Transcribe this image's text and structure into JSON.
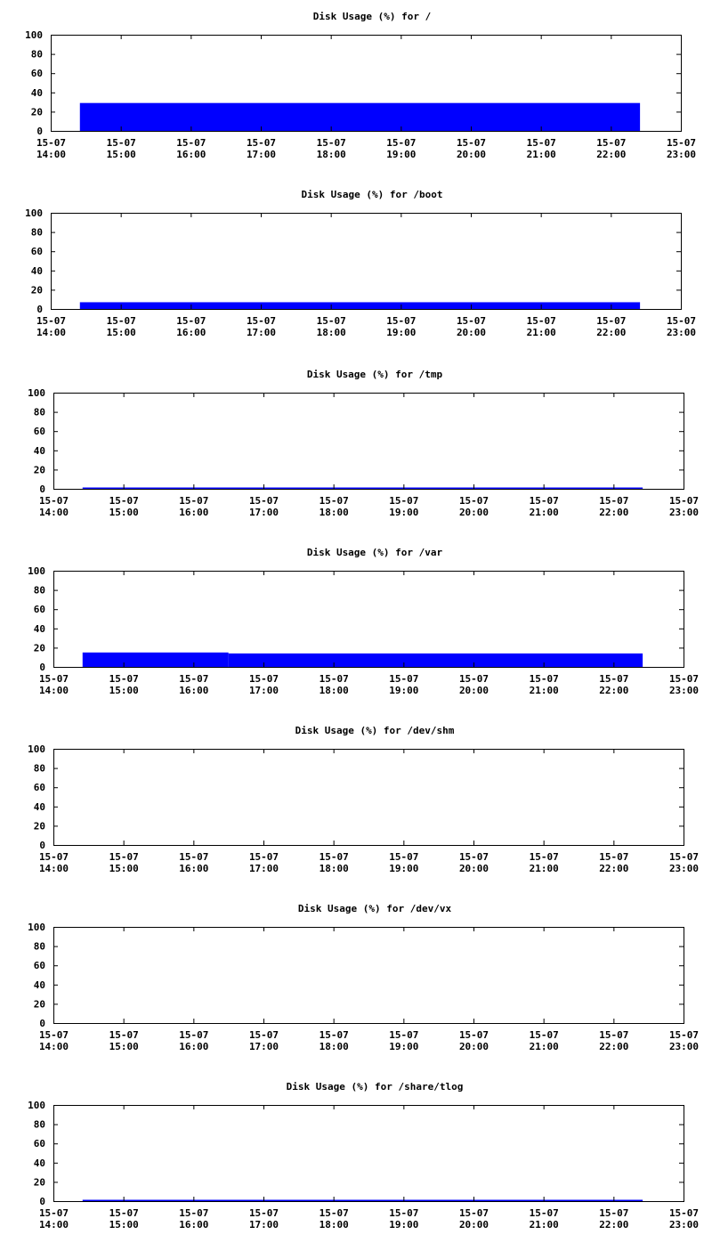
{
  "colors": {
    "bar": "#0000ff",
    "frame": "#000000",
    "background": "#ffffff"
  },
  "chart_data": [
    {
      "type": "bar",
      "title": "Disk Usage (%) for /",
      "ylim": [
        0,
        100
      ],
      "yticks": [
        "0",
        "20",
        "40",
        "60",
        "80",
        "100"
      ],
      "xticks": [
        {
          "date": "15-07",
          "time": "14:00"
        },
        {
          "date": "15-07",
          "time": "15:00"
        },
        {
          "date": "15-07",
          "time": "16:00"
        },
        {
          "date": "15-07",
          "time": "17:00"
        },
        {
          "date": "15-07",
          "time": "18:00"
        },
        {
          "date": "15-07",
          "time": "19:00"
        },
        {
          "date": "15-07",
          "time": "20:00"
        },
        {
          "date": "15-07",
          "time": "21:00"
        },
        {
          "date": "15-07",
          "time": "22:00"
        },
        {
          "date": "15-07",
          "time": "23:00"
        }
      ],
      "xlim": [
        "15-07 14:00",
        "15-07 23:00"
      ],
      "series": [
        {
          "segments": [
            {
              "start": "15-07 14:25",
              "end": "15-07 22:25",
              "value": 29
            }
          ]
        }
      ],
      "grid": false
    },
    {
      "type": "bar",
      "title": "Disk Usage (%) for /boot",
      "ylim": [
        0,
        100
      ],
      "yticks": [
        "0",
        "20",
        "40",
        "60",
        "80",
        "100"
      ],
      "xticks": [
        {
          "date": "15-07",
          "time": "14:00"
        },
        {
          "date": "15-07",
          "time": "15:00"
        },
        {
          "date": "15-07",
          "time": "16:00"
        },
        {
          "date": "15-07",
          "time": "17:00"
        },
        {
          "date": "15-07",
          "time": "18:00"
        },
        {
          "date": "15-07",
          "time": "19:00"
        },
        {
          "date": "15-07",
          "time": "20:00"
        },
        {
          "date": "15-07",
          "time": "21:00"
        },
        {
          "date": "15-07",
          "time": "22:00"
        },
        {
          "date": "15-07",
          "time": "23:00"
        }
      ],
      "xlim": [
        "15-07 14:00",
        "15-07 23:00"
      ],
      "series": [
        {
          "segments": [
            {
              "start": "15-07 14:25",
              "end": "15-07 22:25",
              "value": 7
            }
          ]
        }
      ],
      "grid": false
    },
    {
      "type": "bar",
      "title": "Disk Usage (%) for /tmp",
      "ylim": [
        0,
        100
      ],
      "yticks": [
        "0",
        "20",
        "40",
        "60",
        "80",
        "100"
      ],
      "xticks": [
        {
          "date": "15-07",
          "time": "14:00"
        },
        {
          "date": "15-07",
          "time": "15:00"
        },
        {
          "date": "15-07",
          "time": "16:00"
        },
        {
          "date": "15-07",
          "time": "17:00"
        },
        {
          "date": "15-07",
          "time": "18:00"
        },
        {
          "date": "15-07",
          "time": "19:00"
        },
        {
          "date": "15-07",
          "time": "20:00"
        },
        {
          "date": "15-07",
          "time": "21:00"
        },
        {
          "date": "15-07",
          "time": "22:00"
        },
        {
          "date": "15-07",
          "time": "23:00"
        }
      ],
      "xlim": [
        "15-07 14:00",
        "15-07 23:00"
      ],
      "series": [
        {
          "segments": [
            {
              "start": "15-07 14:25",
              "end": "15-07 22:25",
              "value": 1
            }
          ]
        }
      ],
      "grid": false
    },
    {
      "type": "bar",
      "title": "Disk Usage (%) for /var",
      "ylim": [
        0,
        100
      ],
      "yticks": [
        "0",
        "20",
        "40",
        "60",
        "80",
        "100"
      ],
      "xticks": [
        {
          "date": "15-07",
          "time": "14:00"
        },
        {
          "date": "15-07",
          "time": "15:00"
        },
        {
          "date": "15-07",
          "time": "16:00"
        },
        {
          "date": "15-07",
          "time": "17:00"
        },
        {
          "date": "15-07",
          "time": "18:00"
        },
        {
          "date": "15-07",
          "time": "19:00"
        },
        {
          "date": "15-07",
          "time": "20:00"
        },
        {
          "date": "15-07",
          "time": "21:00"
        },
        {
          "date": "15-07",
          "time": "22:00"
        },
        {
          "date": "15-07",
          "time": "23:00"
        }
      ],
      "xlim": [
        "15-07 14:00",
        "15-07 23:00"
      ],
      "series": [
        {
          "segments": [
            {
              "start": "15-07 14:25",
              "end": "15-07 16:30",
              "value": 15
            },
            {
              "start": "15-07 16:30",
              "end": "15-07 22:25",
              "value": 14
            }
          ]
        }
      ],
      "grid": false
    },
    {
      "type": "bar",
      "title": "Disk Usage (%) for /dev/shm",
      "ylim": [
        0,
        100
      ],
      "yticks": [
        "0",
        "20",
        "40",
        "60",
        "80",
        "100"
      ],
      "xticks": [
        {
          "date": "15-07",
          "time": "14:00"
        },
        {
          "date": "15-07",
          "time": "15:00"
        },
        {
          "date": "15-07",
          "time": "16:00"
        },
        {
          "date": "15-07",
          "time": "17:00"
        },
        {
          "date": "15-07",
          "time": "18:00"
        },
        {
          "date": "15-07",
          "time": "19:00"
        },
        {
          "date": "15-07",
          "time": "20:00"
        },
        {
          "date": "15-07",
          "time": "21:00"
        },
        {
          "date": "15-07",
          "time": "22:00"
        },
        {
          "date": "15-07",
          "time": "23:00"
        }
      ],
      "xlim": [
        "15-07 14:00",
        "15-07 23:00"
      ],
      "series": [
        {
          "segments": []
        }
      ],
      "grid": false
    },
    {
      "type": "bar",
      "title": "Disk Usage (%) for /dev/vx",
      "ylim": [
        0,
        100
      ],
      "yticks": [
        "0",
        "20",
        "40",
        "60",
        "80",
        "100"
      ],
      "xticks": [
        {
          "date": "15-07",
          "time": "14:00"
        },
        {
          "date": "15-07",
          "time": "15:00"
        },
        {
          "date": "15-07",
          "time": "16:00"
        },
        {
          "date": "15-07",
          "time": "17:00"
        },
        {
          "date": "15-07",
          "time": "18:00"
        },
        {
          "date": "15-07",
          "time": "19:00"
        },
        {
          "date": "15-07",
          "time": "20:00"
        },
        {
          "date": "15-07",
          "time": "21:00"
        },
        {
          "date": "15-07",
          "time": "22:00"
        },
        {
          "date": "15-07",
          "time": "23:00"
        }
      ],
      "xlim": [
        "15-07 14:00",
        "15-07 23:00"
      ],
      "series": [
        {
          "segments": []
        }
      ],
      "grid": false
    },
    {
      "type": "bar",
      "title": "Disk Usage (%) for /share/tlog",
      "ylim": [
        0,
        100
      ],
      "yticks": [
        "0",
        "20",
        "40",
        "60",
        "80",
        "100"
      ],
      "xticks": [
        {
          "date": "15-07",
          "time": "14:00"
        },
        {
          "date": "15-07",
          "time": "15:00"
        },
        {
          "date": "15-07",
          "time": "16:00"
        },
        {
          "date": "15-07",
          "time": "17:00"
        },
        {
          "date": "15-07",
          "time": "18:00"
        },
        {
          "date": "15-07",
          "time": "19:00"
        },
        {
          "date": "15-07",
          "time": "20:00"
        },
        {
          "date": "15-07",
          "time": "21:00"
        },
        {
          "date": "15-07",
          "time": "22:00"
        },
        {
          "date": "15-07",
          "time": "23:00"
        }
      ],
      "xlim": [
        "15-07 14:00",
        "15-07 23:00"
      ],
      "series": [
        {
          "segments": [
            {
              "start": "15-07 14:25",
              "end": "15-07 22:25",
              "value": 1
            }
          ]
        }
      ],
      "grid": false
    }
  ]
}
